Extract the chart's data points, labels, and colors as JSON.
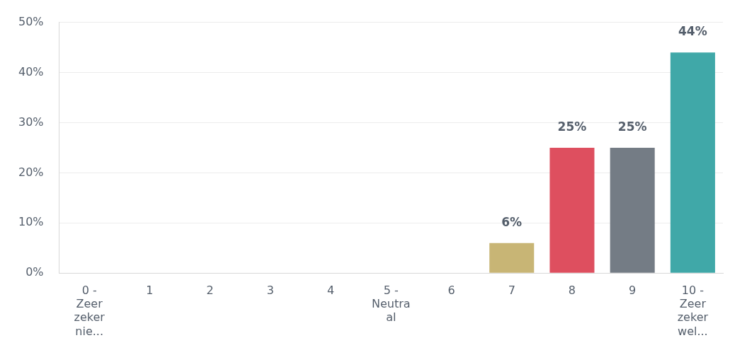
{
  "chart_data": {
    "type": "bar",
    "categories": [
      "0 - Zeer zeker nie...",
      "1",
      "2",
      "3",
      "4",
      "5 - Neutraal",
      "6",
      "7",
      "8",
      "9",
      "10 - Zeer zeker wel..."
    ],
    "values": [
      0,
      0,
      0,
      0,
      0,
      0,
      0,
      6,
      25,
      25,
      44
    ],
    "colors": [
      "#40a8a8",
      "#40a8a8",
      "#40a8a8",
      "#40a8a8",
      "#40a8a8",
      "#40a8a8",
      "#40a8a8",
      "#c8b575",
      "#de4f5f",
      "#747c85",
      "#40a8a8"
    ],
    "value_labels": [
      null,
      null,
      null,
      null,
      null,
      null,
      null,
      "6%",
      "25%",
      "25%",
      "44%"
    ],
    "ylim": [
      0,
      50
    ],
    "yticks": [
      {
        "value": 0,
        "label": "0%"
      },
      {
        "value": 10,
        "label": "10%"
      },
      {
        "value": 20,
        "label": "20%"
      },
      {
        "value": 30,
        "label": "30%"
      },
      {
        "value": 40,
        "label": "40%"
      },
      {
        "value": 50,
        "label": "50%"
      }
    ],
    "grid": "y",
    "legend": false
  }
}
